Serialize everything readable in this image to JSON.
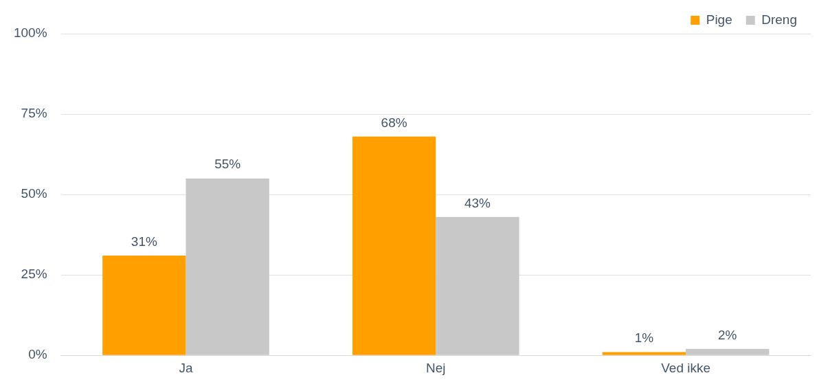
{
  "chart_data": {
    "type": "bar",
    "categories": [
      "Ja",
      "Nej",
      "Ved ikke"
    ],
    "series": [
      {
        "name": "Pige",
        "color": "#ffa000",
        "values": [
          31,
          68,
          1
        ],
        "value_labels": [
          "31%",
          "68%",
          "1%"
        ]
      },
      {
        "name": "Dreng",
        "color": "#c8c8c8",
        "values": [
          55,
          43,
          2
        ],
        "value_labels": [
          "55%",
          "43%",
          "2%"
        ]
      }
    ],
    "ylim": [
      0,
      100
    ],
    "yticks": [
      {
        "value": 0,
        "label": "0%"
      },
      {
        "value": 25,
        "label": "25%"
      },
      {
        "value": 50,
        "label": "50%"
      },
      {
        "value": 75,
        "label": "75%"
      },
      {
        "value": 100,
        "label": "100%"
      }
    ],
    "grid": "y",
    "legend": "top right"
  }
}
